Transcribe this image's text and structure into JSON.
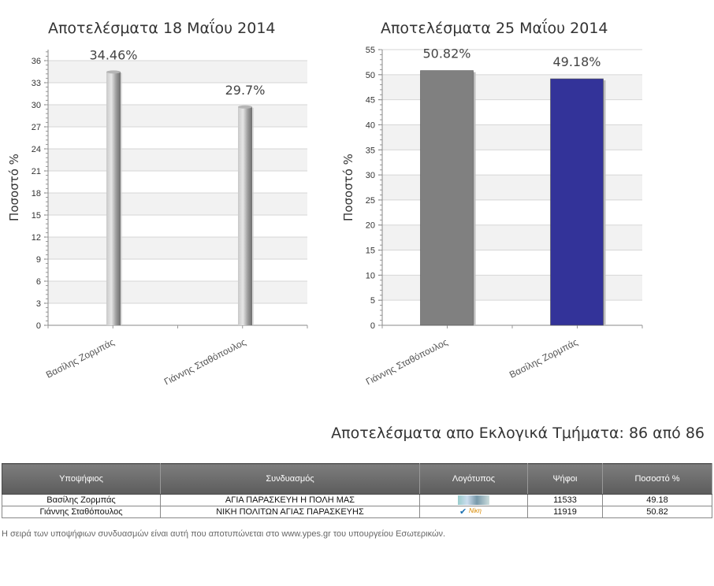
{
  "chart_data": [
    {
      "type": "bar",
      "title": "Αποτελέσματα 18 Μαΐου 2014",
      "ylabel": "Ποσοστό %",
      "xlabel": "",
      "categories": [
        "Βασίλης Ζορμπάς",
        "Γιάννης Σταθόπουλος"
      ],
      "values": [
        34.46,
        29.7
      ],
      "data_labels": [
        "34.46%",
        "29.7%"
      ],
      "ylim": [
        0,
        37.5
      ],
      "yticks": [
        0,
        3,
        6,
        9,
        12,
        15,
        18,
        21,
        24,
        27,
        30,
        33,
        36
      ],
      "bar_colors": [
        "#9a9a9a",
        "#9a9a9a"
      ],
      "grid": true
    },
    {
      "type": "bar",
      "title": "Αποτελέσματα 25 Μαΐου 2014",
      "ylabel": "Ποσοστό %",
      "xlabel": "",
      "categories": [
        "Γιάννης Σταθόπουλος",
        "Βασίλης Ζορμπάς"
      ],
      "values": [
        50.82,
        49.18
      ],
      "data_labels": [
        "50.82%",
        "49.18%"
      ],
      "ylim": [
        0,
        55
      ],
      "yticks": [
        0,
        5,
        10,
        15,
        20,
        25,
        30,
        35,
        40,
        45,
        50,
        55
      ],
      "bar_colors": [
        "#808080",
        "#333399"
      ],
      "grid": true
    }
  ],
  "results": {
    "heading": "Αποτελέσματα απο Εκλογικά Τμήματα: 86 από 86",
    "columns": [
      "Υποψήφιος",
      "Συνδυασμός",
      "Λογότυπος",
      "Ψήφοι",
      "Ποσοστό %"
    ],
    "rows": [
      {
        "candidate": "Βασίλης Ζορμπάς",
        "party": "ΑΓΙΑ ΠΑΡΑΣΚΕΥΗ Η ΠΟΛΗ ΜΑΣ",
        "votes": "11533",
        "percent": "49.18",
        "logo_icon": "party-logo-photo"
      },
      {
        "candidate": "Γιάννης Σταθόπουλος",
        "party": "ΝΙΚΗ ΠΟΛΙΤΩΝ ΑΓΙΑΣ ΠΑΡΑΣΚΕΥΗΣ",
        "votes": "11919",
        "percent": "50.82",
        "logo_icon": "party-logo-check",
        "logo_text": "Νίκη"
      }
    ],
    "footnote": "Η σειρά των υποψήφιων συνδυασμών είναι αυτή που αποτυπώνεται στο www.ypes.gr του υπουργείου Εσωτερικών."
  }
}
